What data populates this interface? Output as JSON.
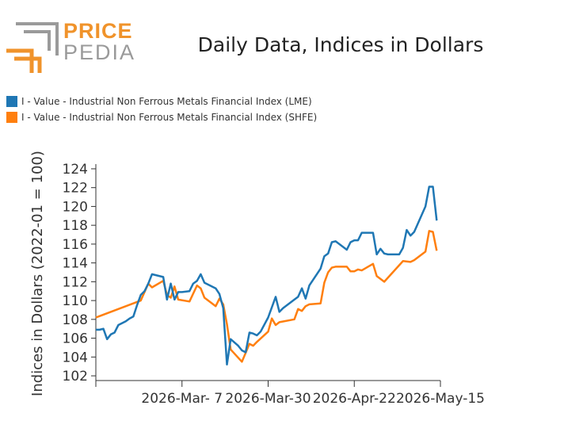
{
  "logo": {
    "word1": "PRICE",
    "word2": "PEDIA"
  },
  "colors": {
    "lme": "#1f77b4",
    "shfe": "#ff7f0e",
    "logo_orange": "#f0932b",
    "logo_gray": "#9a9a9a"
  },
  "chart_data": {
    "type": "line",
    "title": "Daily Data, Indices in Dollars",
    "xlabel": "",
    "ylabel": "Indices in Dollars (2022-01 = 100)",
    "legend_position": "top-left",
    "grid": false,
    "x_ticks": [
      "2026-Mar- 7",
      "2026-Mar-30",
      "2026-Apr-22",
      "2026-May-15"
    ],
    "y_ticks": [
      "102",
      "104",
      "106",
      "108",
      "110",
      "112",
      "114",
      "116",
      "118",
      "120",
      "122",
      "124"
    ],
    "ylim": [
      101.5,
      124.5
    ],
    "xlim": [
      "2026-02-12",
      "2026-05-15"
    ],
    "series": [
      {
        "name": "I - Value - Industrial Non Ferrous Metals Financial Index (LME)",
        "points": [
          [
            "2026-02-12",
            106.9
          ],
          [
            "2026-02-13",
            106.9
          ],
          [
            "2026-02-14",
            107.0
          ],
          [
            "2026-02-15",
            105.9
          ],
          [
            "2026-02-16",
            106.4
          ],
          [
            "2026-02-17",
            106.6
          ],
          [
            "2026-02-18",
            107.4
          ],
          [
            "2026-02-20",
            107.8
          ],
          [
            "2026-02-21",
            108.1
          ],
          [
            "2026-02-22",
            108.3
          ],
          [
            "2026-02-23",
            109.5
          ],
          [
            "2026-02-24",
            110.6
          ],
          [
            "2026-02-25",
            111.0
          ],
          [
            "2026-02-26",
            111.8
          ],
          [
            "2026-02-27",
            112.8
          ],
          [
            "2026-03-02",
            112.5
          ],
          [
            "2026-03-03",
            110.1
          ],
          [
            "2026-03-04",
            111.8
          ],
          [
            "2026-03-05",
            110.1
          ],
          [
            "2026-03-06",
            110.9
          ],
          [
            "2026-03-07",
            110.9
          ],
          [
            "2026-03-09",
            111.0
          ],
          [
            "2026-03-10",
            111.8
          ],
          [
            "2026-03-11",
            112.1
          ],
          [
            "2026-03-12",
            112.8
          ],
          [
            "2026-03-13",
            111.9
          ],
          [
            "2026-03-16",
            111.3
          ],
          [
            "2026-03-17",
            110.7
          ],
          [
            "2026-03-18",
            109.2
          ],
          [
            "2026-03-19",
            103.2
          ],
          [
            "2026-03-20",
            105.9
          ],
          [
            "2026-03-22",
            105.2
          ],
          [
            "2026-03-23",
            104.7
          ],
          [
            "2026-03-24",
            104.5
          ],
          [
            "2026-03-25",
            106.6
          ],
          [
            "2026-03-26",
            106.5
          ],
          [
            "2026-03-27",
            106.3
          ],
          [
            "2026-03-28",
            106.7
          ],
          [
            "2026-03-30",
            108.2
          ],
          [
            "2026-04-01",
            110.4
          ],
          [
            "2026-04-02",
            108.8
          ],
          [
            "2026-04-03",
            109.2
          ],
          [
            "2026-04-06",
            110.1
          ],
          [
            "2026-04-07",
            110.4
          ],
          [
            "2026-04-08",
            111.3
          ],
          [
            "2026-04-09",
            110.2
          ],
          [
            "2026-04-10",
            111.6
          ],
          [
            "2026-04-13",
            113.4
          ],
          [
            "2026-04-14",
            114.7
          ],
          [
            "2026-04-15",
            115.0
          ],
          [
            "2026-04-16",
            116.2
          ],
          [
            "2026-04-17",
            116.3
          ],
          [
            "2026-04-20",
            115.4
          ],
          [
            "2026-04-21",
            116.2
          ],
          [
            "2026-04-22",
            116.4
          ],
          [
            "2026-04-23",
            116.4
          ],
          [
            "2026-04-24",
            117.2
          ],
          [
            "2026-04-27",
            117.2
          ],
          [
            "2026-04-28",
            114.9
          ],
          [
            "2026-04-29",
            115.5
          ],
          [
            "2026-04-30",
            115.0
          ],
          [
            "2026-05-01",
            114.9
          ],
          [
            "2026-05-04",
            114.9
          ],
          [
            "2026-05-05",
            115.6
          ],
          [
            "2026-05-06",
            117.5
          ],
          [
            "2026-05-07",
            116.9
          ],
          [
            "2026-05-08",
            117.3
          ],
          [
            "2026-05-11",
            120.0
          ],
          [
            "2026-05-12",
            122.1
          ],
          [
            "2026-05-13",
            122.1
          ],
          [
            "2026-05-14",
            118.5
          ]
        ]
      },
      {
        "name": "I - Value - Industrial Non Ferrous Metals Financial Index (SHFE)",
        "points": [
          [
            "2026-02-12",
            108.2
          ],
          [
            "2026-02-24",
            110.0
          ],
          [
            "2026-02-26",
            111.8
          ],
          [
            "2026-02-27",
            111.4
          ],
          [
            "2026-03-02",
            112.1
          ],
          [
            "2026-03-03",
            110.6
          ],
          [
            "2026-03-04",
            110.3
          ],
          [
            "2026-03-05",
            111.5
          ],
          [
            "2026-03-06",
            110.1
          ],
          [
            "2026-03-09",
            109.9
          ],
          [
            "2026-03-11",
            111.6
          ],
          [
            "2026-03-12",
            111.3
          ],
          [
            "2026-03-13",
            110.3
          ],
          [
            "2026-03-16",
            109.4
          ],
          [
            "2026-03-17",
            110.2
          ],
          [
            "2026-03-18",
            109.6
          ],
          [
            "2026-03-19",
            107.5
          ],
          [
            "2026-03-20",
            104.8
          ],
          [
            "2026-03-23",
            103.5
          ],
          [
            "2026-03-25",
            105.4
          ],
          [
            "2026-03-26",
            105.2
          ],
          [
            "2026-03-27",
            105.6
          ],
          [
            "2026-03-30",
            106.7
          ],
          [
            "2026-03-31",
            108.1
          ],
          [
            "2026-04-01",
            107.4
          ],
          [
            "2026-04-02",
            107.7
          ],
          [
            "2026-04-06",
            108.0
          ],
          [
            "2026-04-07",
            109.1
          ],
          [
            "2026-04-08",
            108.9
          ],
          [
            "2026-04-09",
            109.4
          ],
          [
            "2026-04-10",
            109.6
          ],
          [
            "2026-04-13",
            109.7
          ],
          [
            "2026-04-14",
            111.9
          ],
          [
            "2026-04-15",
            113.0
          ],
          [
            "2026-04-16",
            113.5
          ],
          [
            "2026-04-17",
            113.6
          ],
          [
            "2026-04-20",
            113.6
          ],
          [
            "2026-04-21",
            113.1
          ],
          [
            "2026-04-22",
            113.1
          ],
          [
            "2026-04-23",
            113.3
          ],
          [
            "2026-04-24",
            113.2
          ],
          [
            "2026-04-27",
            113.9
          ],
          [
            "2026-04-28",
            112.6
          ],
          [
            "2026-04-30",
            112.0
          ],
          [
            "2026-05-05",
            114.2
          ],
          [
            "2026-05-07",
            114.1
          ],
          [
            "2026-05-08",
            114.3
          ],
          [
            "2026-05-11",
            115.2
          ],
          [
            "2026-05-12",
            117.4
          ],
          [
            "2026-05-13",
            117.3
          ],
          [
            "2026-05-14",
            115.3
          ]
        ]
      }
    ]
  }
}
